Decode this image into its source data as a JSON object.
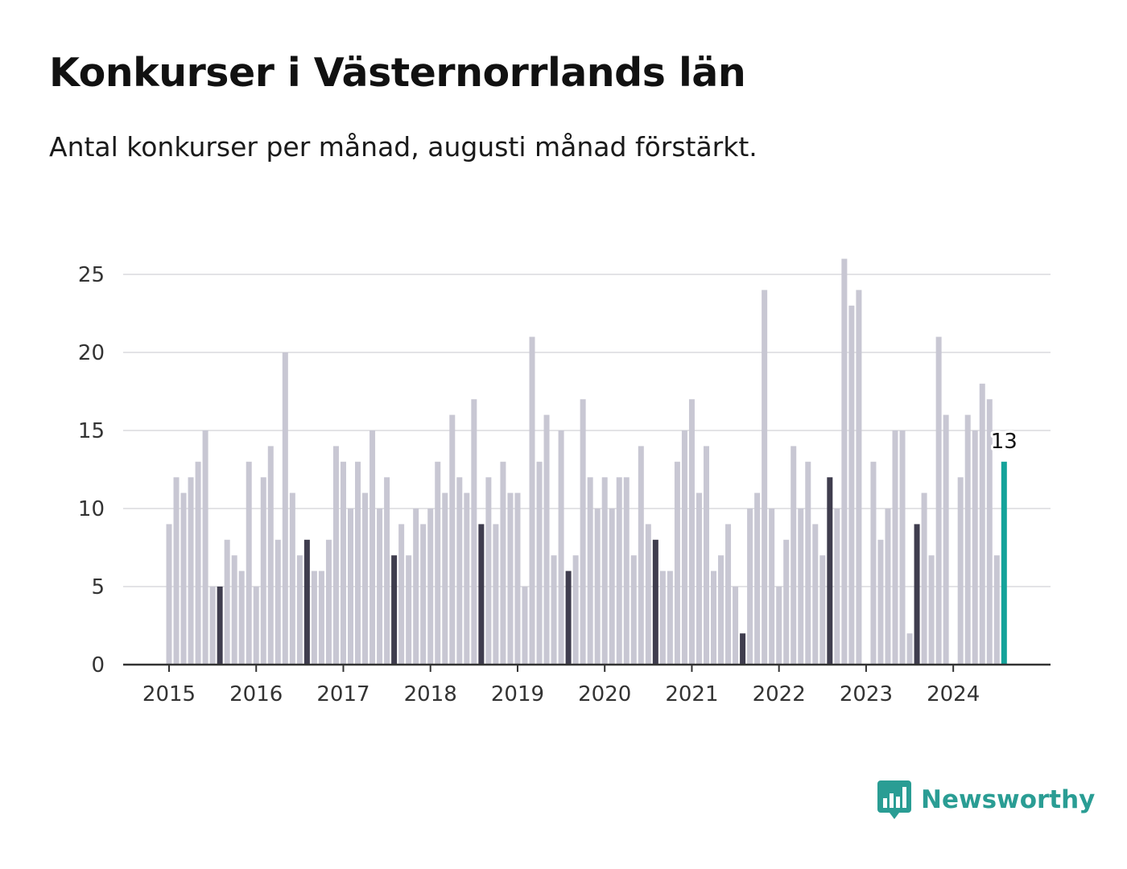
{
  "header": {
    "title": "Konkurser i Västernorrlands län",
    "subtitle": "Antal konkurser per månad, augusti månad förstärkt."
  },
  "brand": {
    "name": "Newsworthy",
    "icon": "newsworthy-logo-icon",
    "color": "#2a9d94"
  },
  "colors": {
    "bar": "#c8c7d3",
    "highlight": "#3f3d4e",
    "latest": "#14a39a",
    "grid": "#e3e3e6",
    "axis": "#333333"
  },
  "chart_data": {
    "type": "bar",
    "title": "Konkurser i Västernorrlands län",
    "subtitle": "Antal konkurser per månad, augusti månad förstärkt.",
    "xlabel": "",
    "ylabel": "",
    "ylim": [
      0,
      26
    ],
    "yticks": [
      0,
      5,
      10,
      15,
      20,
      25
    ],
    "xticks": [
      "2015",
      "2016",
      "2017",
      "2018",
      "2019",
      "2020",
      "2021",
      "2022",
      "2023",
      "2024"
    ],
    "start_year": 2015,
    "highlight_month": "augusti",
    "grid": true,
    "latest_label": "13",
    "series": [
      {
        "year": "2015",
        "values": [
          9,
          12,
          11,
          12,
          13,
          15,
          5,
          5,
          8,
          7,
          6,
          13
        ]
      },
      {
        "year": "2016",
        "values": [
          5,
          12,
          14,
          8,
          20,
          11,
          7,
          8,
          6,
          6,
          8,
          14
        ]
      },
      {
        "year": "2017",
        "values": [
          13,
          10,
          13,
          11,
          15,
          10,
          12,
          7,
          9,
          7,
          10,
          9
        ]
      },
      {
        "year": "2018",
        "values": [
          10,
          13,
          11,
          16,
          12,
          11,
          17,
          9,
          12,
          9,
          13,
          11
        ]
      },
      {
        "year": "2019",
        "values": [
          11,
          5,
          21,
          13,
          16,
          7,
          15,
          6,
          7,
          17,
          12,
          10
        ]
      },
      {
        "year": "2020",
        "values": [
          12,
          10,
          12,
          12,
          7,
          14,
          9,
          8,
          6,
          6,
          13,
          15
        ]
      },
      {
        "year": "2021",
        "values": [
          17,
          11,
          14,
          6,
          7,
          9,
          5,
          2,
          10,
          11,
          24,
          10
        ]
      },
      {
        "year": "2022",
        "values": [
          5,
          8,
          14,
          10,
          13,
          9,
          7,
          12,
          10,
          26,
          23,
          24
        ]
      },
      {
        "year": "2023",
        "values": [
          0,
          13,
          8,
          10,
          15,
          15,
          2,
          9,
          11,
          7,
          21,
          16
        ]
      },
      {
        "year": "2024",
        "values": [
          0,
          12,
          16,
          15,
          18,
          17,
          7,
          13
        ]
      }
    ]
  }
}
